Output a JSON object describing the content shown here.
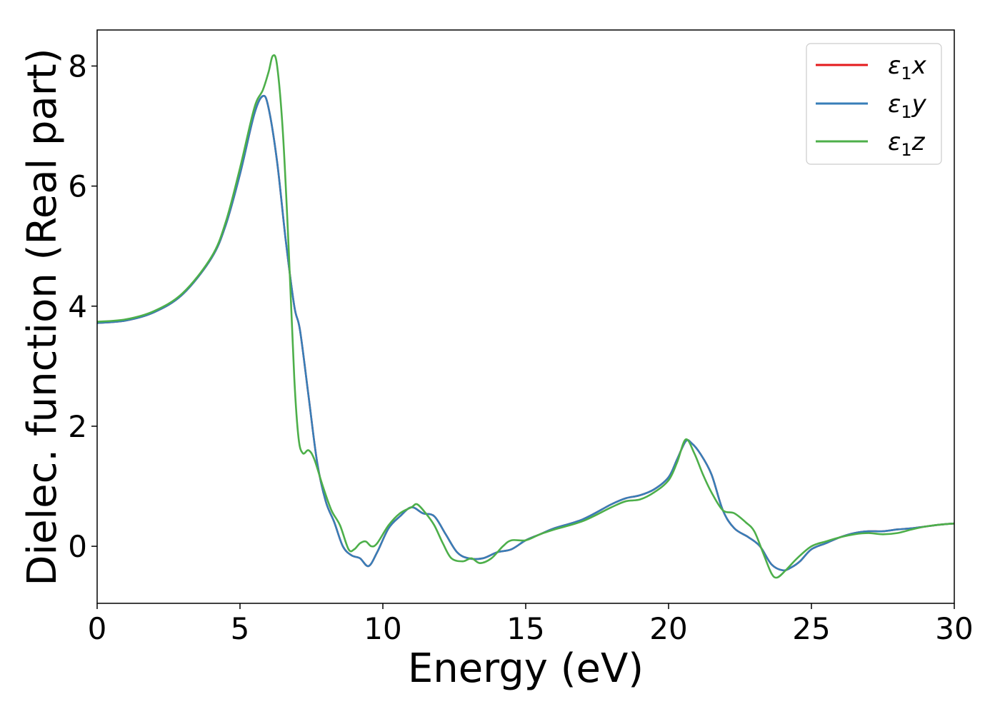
{
  "chart_data": {
    "type": "line",
    "xlabel": "Energy (eV)",
    "ylabel": "Dielec. function (Real part)",
    "xlim": [
      0,
      30
    ],
    "ylim": [
      -0.95,
      8.6
    ],
    "x_ticks": [
      "0",
      "5",
      "10",
      "15",
      "20",
      "25",
      "30"
    ],
    "y_ticks": [
      "0",
      "2",
      "4",
      "6",
      "8"
    ],
    "grid": false,
    "legend_position": "top-right",
    "series": [
      {
        "name": "ε1x",
        "color": "#e41a1c",
        "points": [
          [
            0,
            3.72
          ],
          [
            1,
            3.76
          ],
          [
            2,
            3.9
          ],
          [
            3,
            4.2
          ],
          [
            4,
            4.8
          ],
          [
            4.5,
            5.35
          ],
          [
            5,
            6.2
          ],
          [
            5.5,
            7.2
          ],
          [
            5.8,
            7.5
          ],
          [
            6.0,
            7.3
          ],
          [
            6.3,
            6.4
          ],
          [
            6.6,
            5.1
          ],
          [
            6.9,
            4.0
          ],
          [
            7.1,
            3.6
          ],
          [
            7.4,
            2.5
          ],
          [
            7.7,
            1.4
          ],
          [
            8.0,
            0.75
          ],
          [
            8.3,
            0.4
          ],
          [
            8.6,
            0.0
          ],
          [
            8.9,
            -0.15
          ],
          [
            9.2,
            -0.2
          ],
          [
            9.5,
            -0.33
          ],
          [
            9.8,
            -0.1
          ],
          [
            10.2,
            0.3
          ],
          [
            10.6,
            0.5
          ],
          [
            11.0,
            0.65
          ],
          [
            11.4,
            0.55
          ],
          [
            11.8,
            0.5
          ],
          [
            12.2,
            0.2
          ],
          [
            12.6,
            -0.1
          ],
          [
            13.0,
            -0.2
          ],
          [
            13.5,
            -0.2
          ],
          [
            14.0,
            -0.1
          ],
          [
            14.5,
            -0.05
          ],
          [
            15.0,
            0.1
          ],
          [
            15.5,
            0.2
          ],
          [
            16,
            0.3
          ],
          [
            17,
            0.45
          ],
          [
            18,
            0.7
          ],
          [
            18.5,
            0.8
          ],
          [
            19,
            0.85
          ],
          [
            19.5,
            0.95
          ],
          [
            20,
            1.15
          ],
          [
            20.3,
            1.45
          ],
          [
            20.6,
            1.75
          ],
          [
            20.8,
            1.72
          ],
          [
            21.1,
            1.55
          ],
          [
            21.5,
            1.2
          ],
          [
            21.9,
            0.6
          ],
          [
            22.3,
            0.3
          ],
          [
            22.8,
            0.15
          ],
          [
            23.2,
            0.0
          ],
          [
            23.6,
            -0.3
          ],
          [
            24.0,
            -0.4
          ],
          [
            24.3,
            -0.35
          ],
          [
            24.6,
            -0.25
          ],
          [
            25,
            -0.05
          ],
          [
            25.5,
            0.05
          ],
          [
            26,
            0.15
          ],
          [
            26.5,
            0.22
          ],
          [
            27,
            0.25
          ],
          [
            27.5,
            0.25
          ],
          [
            28,
            0.28
          ],
          [
            28.5,
            0.3
          ],
          [
            29,
            0.33
          ],
          [
            29.5,
            0.36
          ],
          [
            30,
            0.38
          ]
        ]
      },
      {
        "name": "ε1y",
        "color": "#377eb8",
        "points": [
          [
            0,
            3.72
          ],
          [
            1,
            3.76
          ],
          [
            2,
            3.9
          ],
          [
            3,
            4.2
          ],
          [
            4,
            4.8
          ],
          [
            4.5,
            5.35
          ],
          [
            5,
            6.2
          ],
          [
            5.5,
            7.2
          ],
          [
            5.8,
            7.5
          ],
          [
            6.0,
            7.3
          ],
          [
            6.3,
            6.4
          ],
          [
            6.6,
            5.1
          ],
          [
            6.9,
            4.0
          ],
          [
            7.1,
            3.6
          ],
          [
            7.4,
            2.5
          ],
          [
            7.7,
            1.4
          ],
          [
            8.0,
            0.75
          ],
          [
            8.3,
            0.4
          ],
          [
            8.6,
            0.0
          ],
          [
            8.9,
            -0.15
          ],
          [
            9.2,
            -0.2
          ],
          [
            9.5,
            -0.33
          ],
          [
            9.8,
            -0.1
          ],
          [
            10.2,
            0.3
          ],
          [
            10.6,
            0.5
          ],
          [
            11.0,
            0.65
          ],
          [
            11.4,
            0.55
          ],
          [
            11.8,
            0.5
          ],
          [
            12.2,
            0.2
          ],
          [
            12.6,
            -0.1
          ],
          [
            13.0,
            -0.2
          ],
          [
            13.5,
            -0.2
          ],
          [
            14.0,
            -0.1
          ],
          [
            14.5,
            -0.05
          ],
          [
            15.0,
            0.1
          ],
          [
            15.5,
            0.2
          ],
          [
            16,
            0.3
          ],
          [
            17,
            0.45
          ],
          [
            18,
            0.7
          ],
          [
            18.5,
            0.8
          ],
          [
            19,
            0.85
          ],
          [
            19.5,
            0.95
          ],
          [
            20,
            1.15
          ],
          [
            20.3,
            1.45
          ],
          [
            20.6,
            1.75
          ],
          [
            20.8,
            1.72
          ],
          [
            21.1,
            1.55
          ],
          [
            21.5,
            1.2
          ],
          [
            21.9,
            0.6
          ],
          [
            22.3,
            0.3
          ],
          [
            22.8,
            0.15
          ],
          [
            23.2,
            0.0
          ],
          [
            23.6,
            -0.3
          ],
          [
            24.0,
            -0.4
          ],
          [
            24.3,
            -0.35
          ],
          [
            24.6,
            -0.25
          ],
          [
            25,
            -0.05
          ],
          [
            25.5,
            0.05
          ],
          [
            26,
            0.15
          ],
          [
            26.5,
            0.22
          ],
          [
            27,
            0.25
          ],
          [
            27.5,
            0.25
          ],
          [
            28,
            0.28
          ],
          [
            28.5,
            0.3
          ],
          [
            29,
            0.33
          ],
          [
            29.5,
            0.36
          ],
          [
            30,
            0.38
          ]
        ]
      },
      {
        "name": "ε1z",
        "color": "#4daf4a",
        "points": [
          [
            0,
            3.74
          ],
          [
            1,
            3.78
          ],
          [
            2,
            3.92
          ],
          [
            3,
            4.22
          ],
          [
            4,
            4.82
          ],
          [
            4.5,
            5.4
          ],
          [
            5,
            6.3
          ],
          [
            5.5,
            7.3
          ],
          [
            5.8,
            7.6
          ],
          [
            6.0,
            7.9
          ],
          [
            6.15,
            8.17
          ],
          [
            6.3,
            8.0
          ],
          [
            6.5,
            6.9
          ],
          [
            6.7,
            5.0
          ],
          [
            6.9,
            2.8
          ],
          [
            7.05,
            1.8
          ],
          [
            7.2,
            1.55
          ],
          [
            7.4,
            1.6
          ],
          [
            7.6,
            1.45
          ],
          [
            7.9,
            1.0
          ],
          [
            8.2,
            0.6
          ],
          [
            8.5,
            0.35
          ],
          [
            8.8,
            -0.05
          ],
          [
            9.0,
            -0.05
          ],
          [
            9.2,
            0.05
          ],
          [
            9.4,
            0.08
          ],
          [
            9.6,
            0.0
          ],
          [
            9.8,
            0.05
          ],
          [
            10.2,
            0.35
          ],
          [
            10.6,
            0.55
          ],
          [
            11.0,
            0.65
          ],
          [
            11.2,
            0.7
          ],
          [
            11.5,
            0.55
          ],
          [
            11.8,
            0.35
          ],
          [
            12.1,
            0.05
          ],
          [
            12.4,
            -0.2
          ],
          [
            12.8,
            -0.25
          ],
          [
            13.1,
            -0.2
          ],
          [
            13.4,
            -0.28
          ],
          [
            13.8,
            -0.2
          ],
          [
            14.2,
            0.0
          ],
          [
            14.5,
            0.1
          ],
          [
            15,
            0.1
          ],
          [
            15.5,
            0.2
          ],
          [
            16,
            0.28
          ],
          [
            17,
            0.42
          ],
          [
            18,
            0.65
          ],
          [
            18.5,
            0.75
          ],
          [
            19,
            0.78
          ],
          [
            19.5,
            0.9
          ],
          [
            20,
            1.1
          ],
          [
            20.3,
            1.4
          ],
          [
            20.6,
            1.78
          ],
          [
            20.9,
            1.55
          ],
          [
            21.2,
            1.2
          ],
          [
            21.5,
            0.9
          ],
          [
            21.9,
            0.6
          ],
          [
            22.3,
            0.55
          ],
          [
            22.7,
            0.4
          ],
          [
            23.0,
            0.25
          ],
          [
            23.3,
            -0.1
          ],
          [
            23.6,
            -0.45
          ],
          [
            23.8,
            -0.52
          ],
          [
            24.1,
            -0.4
          ],
          [
            24.5,
            -0.2
          ],
          [
            25,
            0.0
          ],
          [
            25.5,
            0.08
          ],
          [
            26,
            0.15
          ],
          [
            26.5,
            0.2
          ],
          [
            27,
            0.22
          ],
          [
            27.5,
            0.2
          ],
          [
            28,
            0.22
          ],
          [
            28.5,
            0.28
          ],
          [
            29,
            0.33
          ],
          [
            29.5,
            0.36
          ],
          [
            30,
            0.38
          ]
        ]
      }
    ]
  }
}
